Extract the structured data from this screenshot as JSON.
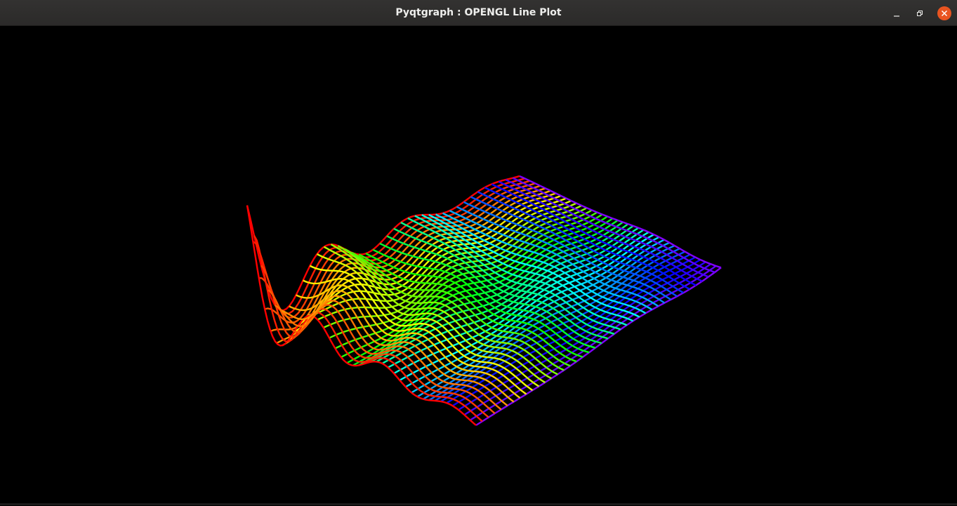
{
  "window": {
    "title": "Pyqtgraph : OPENGL Line Plot",
    "controls": {
      "minimize_icon": "minimize-icon",
      "maximize_icon": "restore-icon",
      "close_icon": "close-icon",
      "close_color": "#e95420"
    }
  },
  "plot": {
    "type": "3d-line-surface",
    "background": "#000000",
    "color_map": "hsv-rainbow red-to-violet",
    "line_families": 2,
    "lines_per_family": 40
  }
}
